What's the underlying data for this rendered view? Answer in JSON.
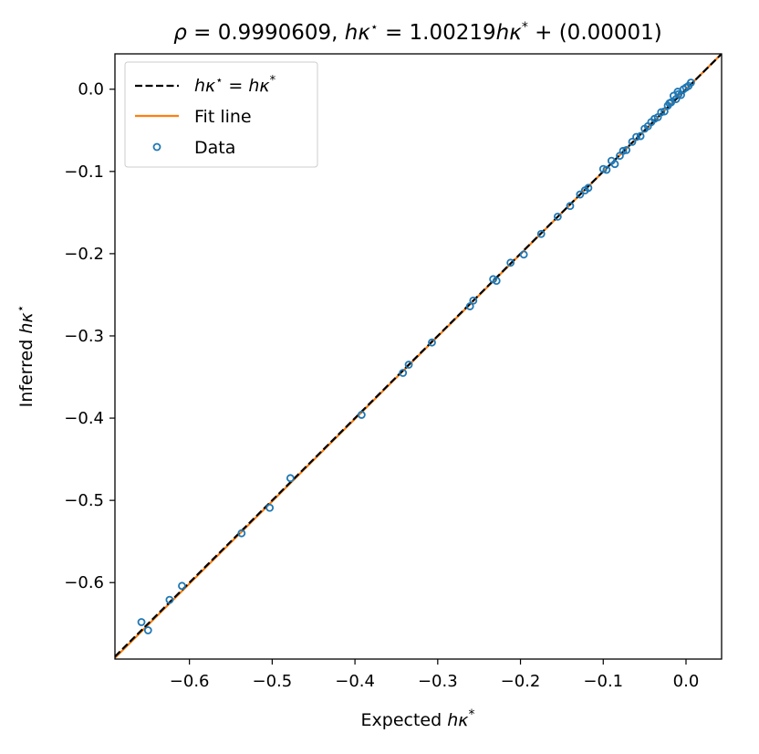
{
  "chart_data": {
    "type": "scatter",
    "title": "ρ = 0.9990609,   hκ⋆ = 1.00219hκ* + (0.00001)",
    "xlabel": "Expected hκ*",
    "ylabel": "Inferred hκ⋆",
    "xlim": [
      -0.69,
      0.043
    ],
    "ylim": [
      -0.693,
      0.043
    ],
    "xticks": [
      -0.6,
      -0.5,
      -0.4,
      -0.3,
      -0.2,
      -0.1,
      0.0
    ],
    "yticks": [
      -0.6,
      -0.5,
      -0.4,
      -0.3,
      -0.2,
      -0.1,
      0.0
    ],
    "xtick_labels": [
      "−0.6",
      "−0.5",
      "−0.4",
      "−0.3",
      "−0.2",
      "−0.1",
      "0.0"
    ],
    "ytick_labels": [
      "−0.6",
      "−0.5",
      "−0.4",
      "−0.3",
      "−0.2",
      "−0.1",
      "0.0"
    ],
    "grid": false,
    "legend_placement": "top-left",
    "fit": {
      "slope": 1.00219,
      "intercept": 1e-05
    },
    "series": [
      {
        "name": "hκ⋆ = hκ*",
        "kind": "line",
        "style": "dashed",
        "color": "#000000",
        "x": [
          -0.69,
          0.043
        ],
        "y": [
          -0.69,
          0.043
        ]
      },
      {
        "name": "Fit line",
        "kind": "line",
        "style": "solid",
        "color": "#ff7f0e",
        "x": [
          -0.69,
          0.043
        ],
        "y": [
          -0.6915,
          0.0431
        ]
      },
      {
        "name": "Data",
        "kind": "scatter",
        "color": "#1f77b4",
        "x": [
          -0.658,
          -0.65,
          -0.624,
          -0.609,
          -0.537,
          -0.503,
          -0.478,
          -0.392,
          -0.342,
          -0.335,
          -0.307,
          -0.261,
          -0.257,
          -0.233,
          -0.229,
          -0.212,
          -0.196,
          -0.175,
          -0.155,
          -0.14,
          -0.128,
          -0.122,
          -0.118,
          -0.1,
          -0.096,
          -0.09,
          -0.086,
          -0.08,
          -0.076,
          -0.072,
          -0.065,
          -0.06,
          -0.055,
          -0.05,
          -0.046,
          -0.042,
          -0.038,
          -0.034,
          -0.03,
          -0.026,
          -0.022,
          -0.018,
          -0.015,
          -0.012,
          -0.009,
          -0.006,
          -0.003,
          0.0,
          0.003,
          0.006,
          -0.02,
          -0.01
        ],
        "y": [
          -0.648,
          -0.658,
          -0.621,
          -0.604,
          -0.54,
          -0.509,
          -0.473,
          -0.396,
          -0.345,
          -0.335,
          -0.308,
          -0.264,
          -0.257,
          -0.231,
          -0.233,
          -0.211,
          -0.201,
          -0.176,
          -0.155,
          -0.142,
          -0.128,
          -0.123,
          -0.12,
          -0.097,
          -0.098,
          -0.087,
          -0.091,
          -0.081,
          -0.075,
          -0.074,
          -0.064,
          -0.058,
          -0.057,
          -0.048,
          -0.045,
          -0.04,
          -0.036,
          -0.034,
          -0.028,
          -0.027,
          -0.02,
          -0.016,
          -0.008,
          -0.012,
          -0.006,
          -0.007,
          0.0,
          0.002,
          0.004,
          0.008,
          -0.017,
          -0.003
        ]
      }
    ]
  }
}
